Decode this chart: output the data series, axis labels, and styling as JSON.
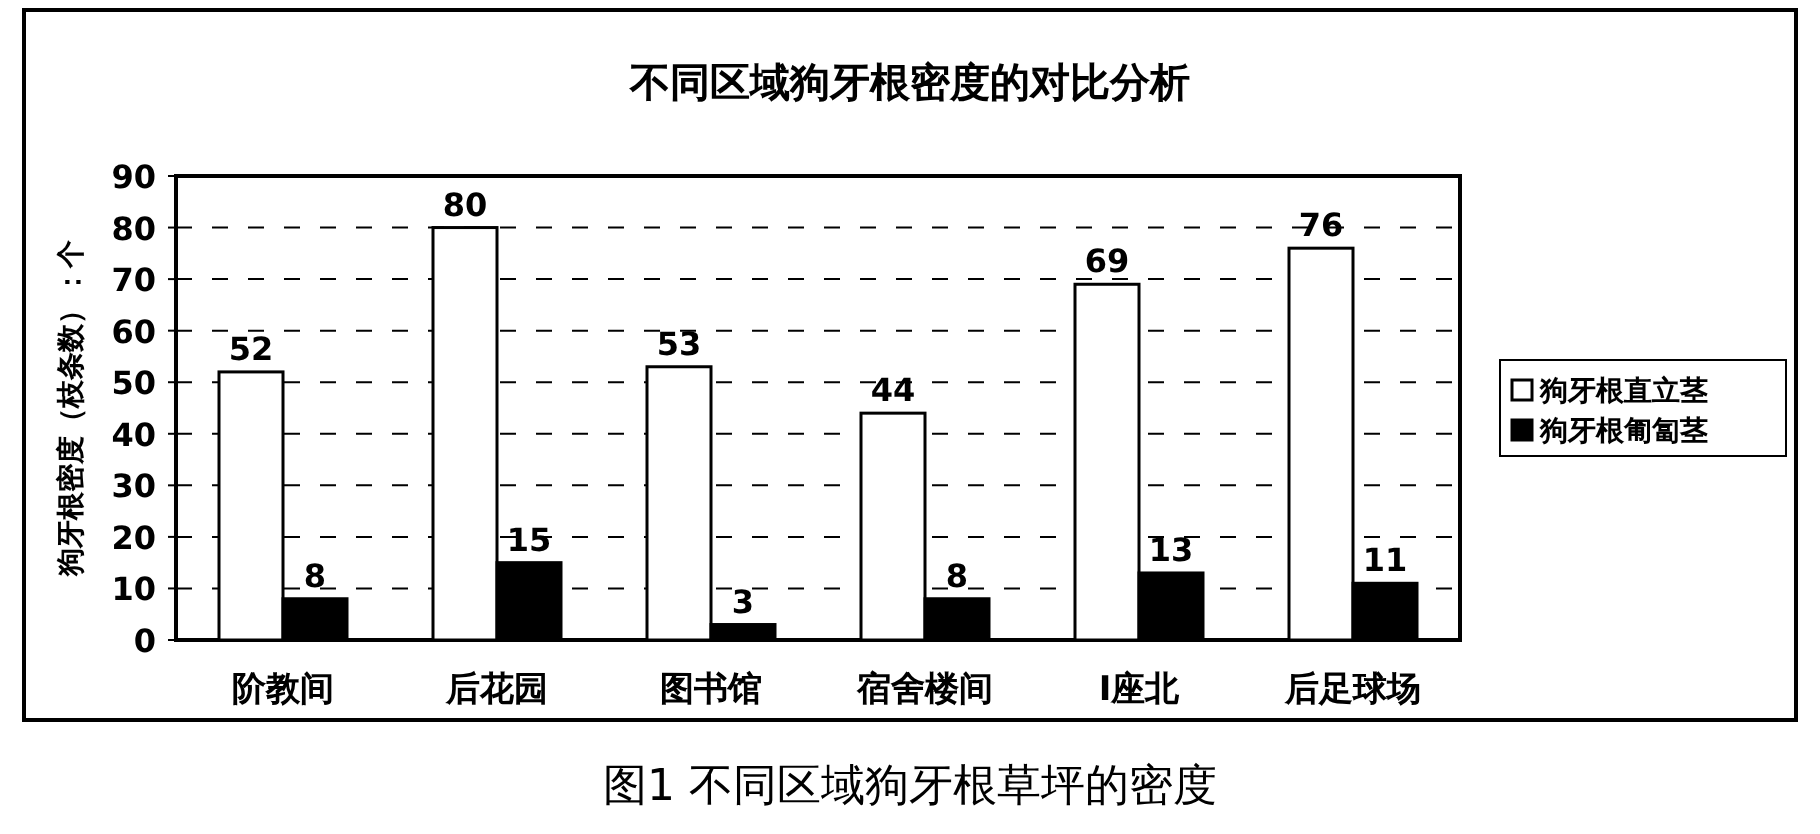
{
  "chart_data": {
    "type": "bar",
    "title": "不同区域狗牙根密度的对比分析",
    "ylabel": "狗牙根密度（枝条数）：个",
    "categories": [
      "阶教间",
      "后花园",
      "图书馆",
      "宿舍楼间",
      "I座北",
      "后足球场"
    ],
    "series": [
      {
        "name": "狗牙根直立茎",
        "color": "#ffffff",
        "values": [
          52,
          80,
          53,
          44,
          69,
          76
        ]
      },
      {
        "name": "狗牙根匍匐茎",
        "color": "#000000",
        "values": [
          8,
          15,
          3,
          8,
          13,
          11
        ]
      }
    ],
    "ylim": [
      0,
      90
    ],
    "yticks": [
      0,
      10,
      20,
      30,
      40,
      50,
      60,
      70,
      80,
      90
    ],
    "grid": "y",
    "legend": "right",
    "data_labels": true,
    "annotations": [
      "图1 不同区域狗牙根草坪的密度"
    ]
  }
}
